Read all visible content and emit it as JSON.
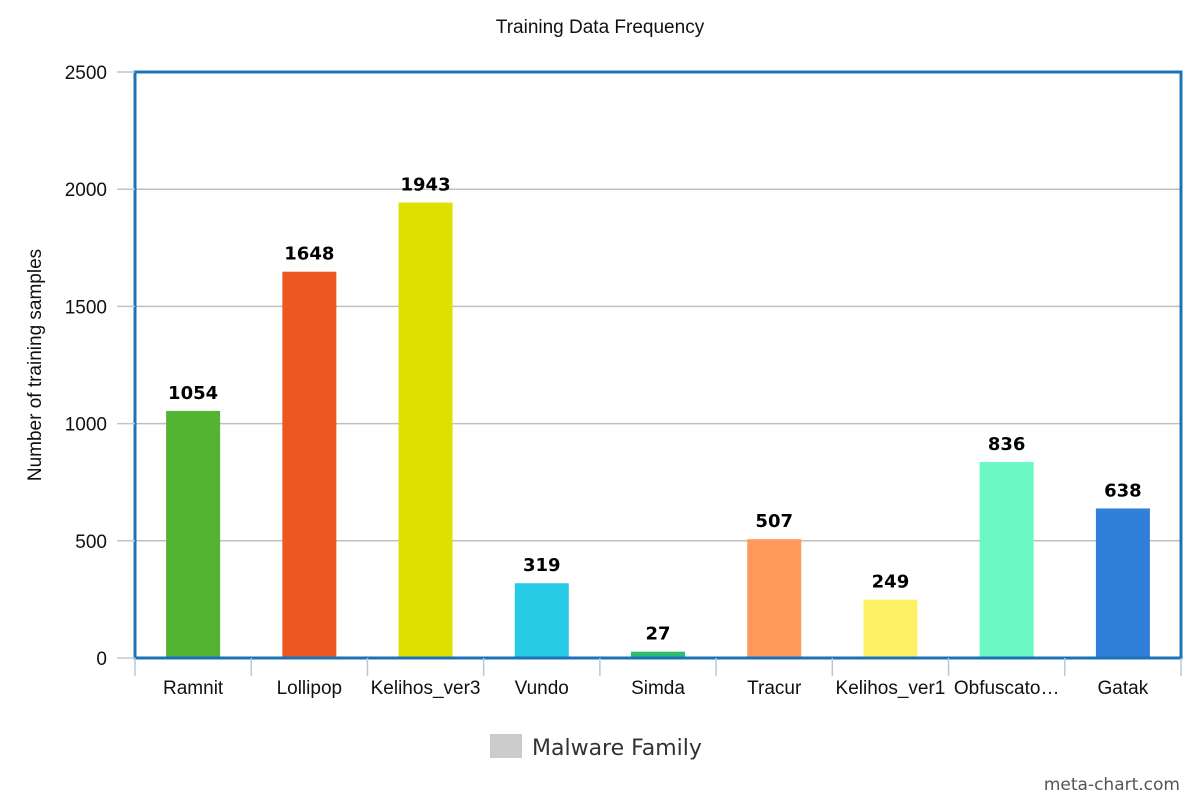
{
  "chart_data": {
    "type": "bar",
    "title": "Training Data Frequency",
    "ylabel": "Number of training samples",
    "xlabel": "",
    "categories": [
      "Ramnit",
      "Lollipop",
      "Kelihos_ver3",
      "Vundo",
      "Simda",
      "Tracur",
      "Kelihos_ver1",
      "Obfuscato…",
      "Gatak"
    ],
    "values": [
      1054,
      1648,
      1943,
      319,
      27,
      507,
      249,
      836,
      638
    ],
    "data_labels": [
      "1054",
      "1648",
      "1943",
      "319",
      "27",
      "507",
      "249",
      "836",
      "638"
    ],
    "colors": [
      "#53b432",
      "#ec581f",
      "#dde000",
      "#27cbe5",
      "#2dbd6e",
      "#ff9a5a",
      "#fff165",
      "#6bf8c4",
      "#3080d9"
    ],
    "ylim": [
      0,
      2500
    ],
    "yticks": [
      0,
      500,
      1000,
      1500,
      2000,
      2500
    ],
    "ytick_labels": [
      "0",
      "500",
      "1000",
      "1500",
      "2000",
      "2500"
    ],
    "grid": true,
    "legend": {
      "label": "Malware Family",
      "swatch_color": "#cccccc",
      "placement": "bottom-center"
    },
    "frame_color": "#1a73b9",
    "grid_color": "#bfbfbf"
  },
  "watermark": "meta-chart.com"
}
